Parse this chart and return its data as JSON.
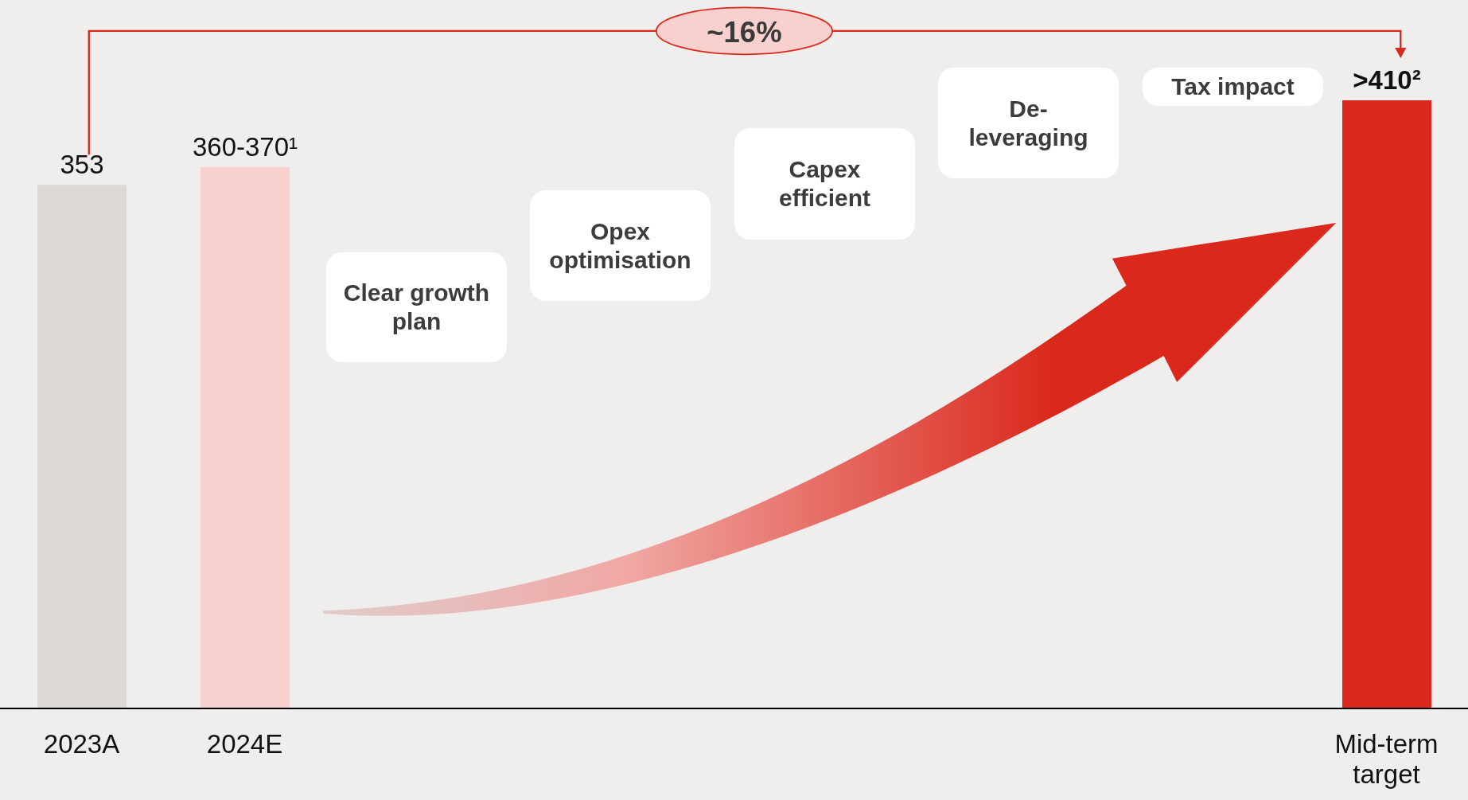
{
  "chart_data": {
    "type": "bar",
    "categories": [
      "2023A",
      "2024E",
      null,
      null,
      null,
      null,
      null,
      null,
      "Mid-term target"
    ],
    "values": [
      353,
      365,
      null,
      null,
      null,
      null,
      null,
      null,
      410
    ],
    "colors": [
      "#dbd8d5",
      "#f8d0ce",
      null,
      null,
      null,
      null,
      null,
      null,
      "#da291c"
    ],
    "value_labels": [
      "353",
      "360-370¹",
      null,
      null,
      null,
      null,
      null,
      null,
      ">410²"
    ],
    "annotations": [
      "~16%",
      "Clear growth plan",
      "Opex optimisation",
      "Capex efficient",
      "De-leveraging",
      "Tax impact"
    ]
  }
}
